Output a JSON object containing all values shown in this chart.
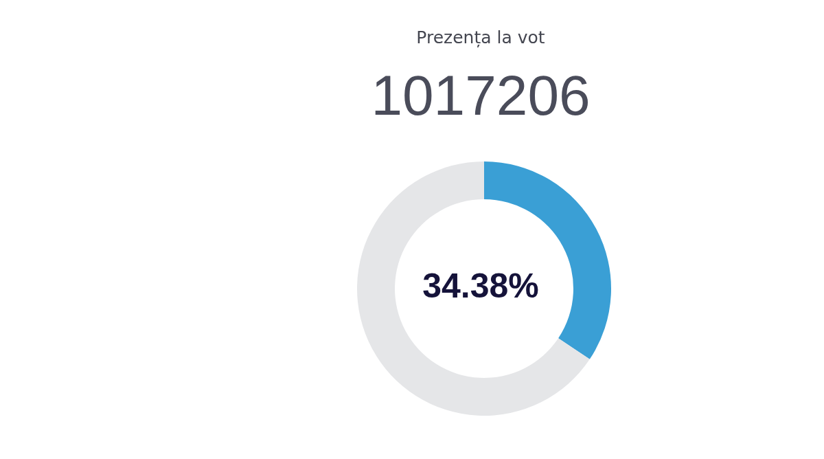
{
  "chart_data": {
    "type": "donut",
    "title": "Prezența la vot",
    "subtitle": "1017206",
    "categories": [
      null,
      null
    ],
    "values": [
      34.38,
      65.62
    ],
    "colors": [
      "#3a9fd5",
      "#e5e6e8"
    ],
    "annotations": [
      "34.38%"
    ],
    "legend": false
  }
}
